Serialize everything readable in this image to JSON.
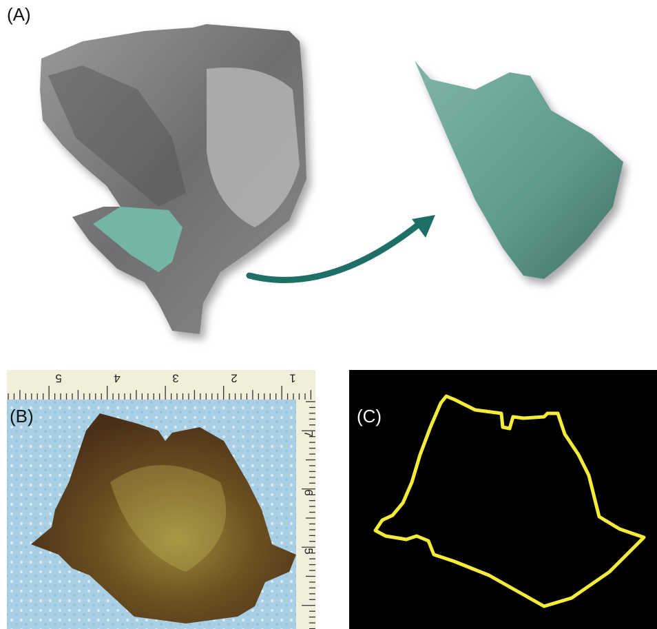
{
  "panels": [
    {
      "label": "(A)"
    },
    {
      "label": "(B)",
      "ruler_top": [
        "5",
        "4",
        "3",
        "2",
        "1"
      ],
      "ruler_side": [
        "7",
        "6",
        "5"
      ]
    },
    {
      "label": "(C)"
    }
  ]
}
